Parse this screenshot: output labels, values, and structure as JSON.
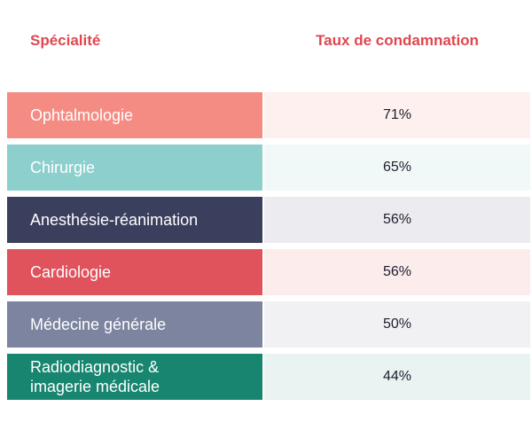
{
  "chart_data": {
    "type": "table",
    "columns": [
      "Spécialité",
      "Taux de condamnation"
    ],
    "rows": [
      {
        "label": "Ophtalmologie",
        "value": "71%",
        "color": "#f48c84",
        "tint": "#fdf0ee"
      },
      {
        "label": "Chirurgie",
        "value": "65%",
        "color": "#8ccfcc",
        "tint": "#f1f9f8"
      },
      {
        "label": "Anesthésie-réanimation",
        "value": "56%",
        "color": "#3b3f5e",
        "tint": "#ececf0"
      },
      {
        "label": "Cardiologie",
        "value": "56%",
        "color": "#e0525c",
        "tint": "#fcecec"
      },
      {
        "label": "Médecine générale",
        "value": "50%",
        "color": "#7c849f",
        "tint": "#f1f1f4"
      },
      {
        "label": "Radiodiagnostic & imagerie médicale",
        "value": "44%",
        "color": "#17856f",
        "tint": "#e9f3f1"
      }
    ]
  }
}
